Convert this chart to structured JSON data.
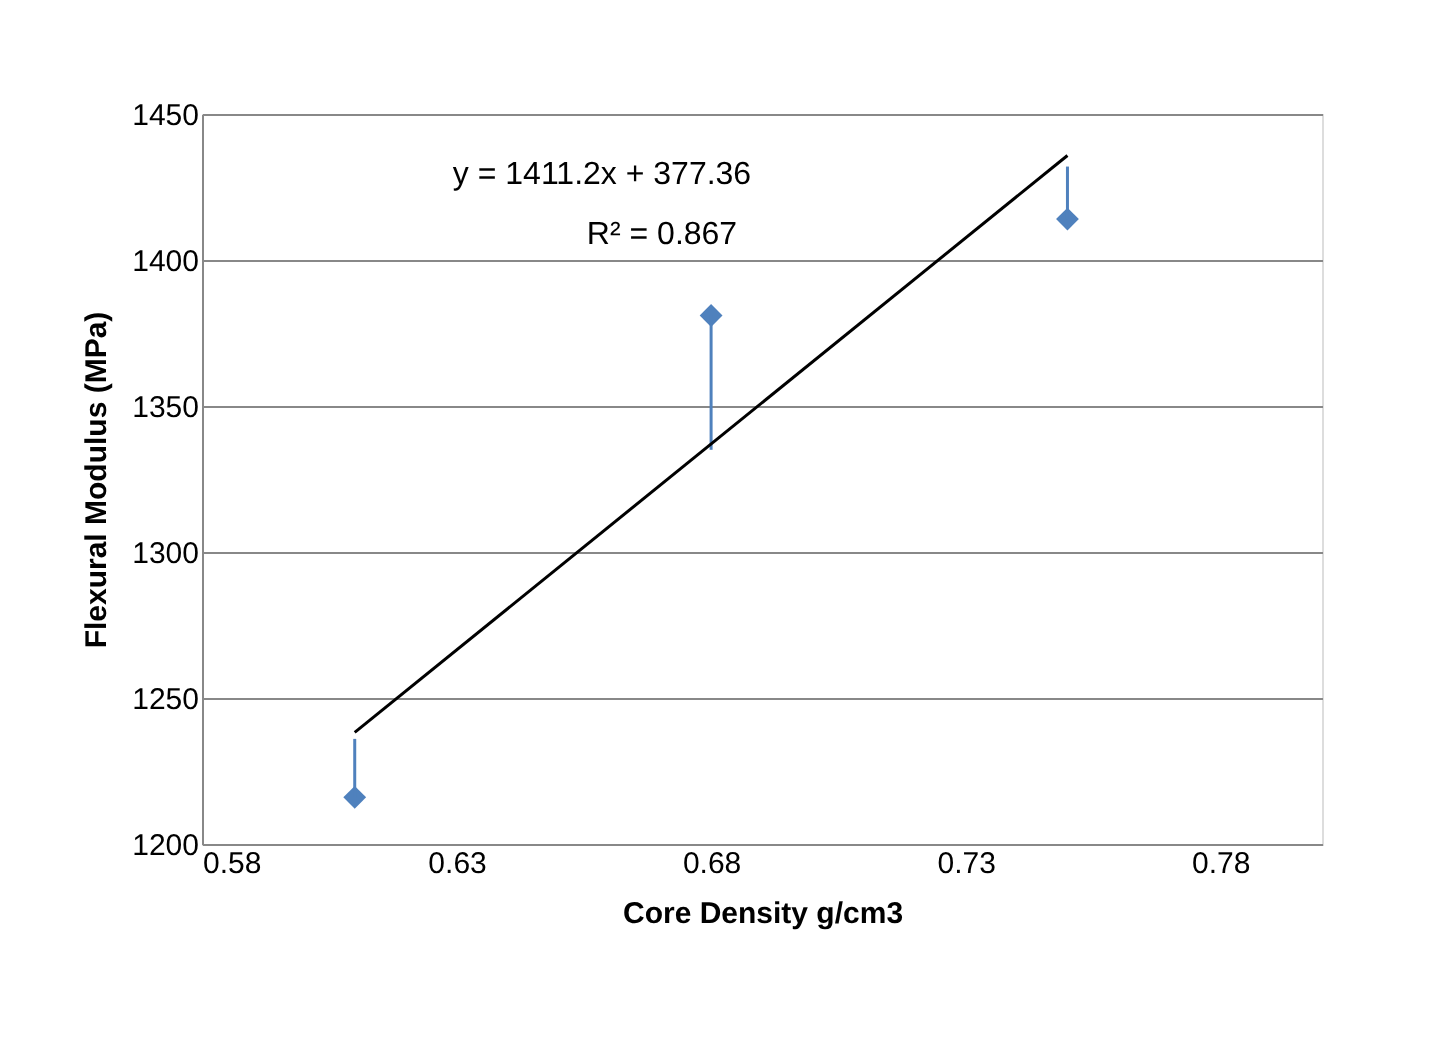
{
  "chart_data": {
    "type": "scatter",
    "xlabel": "Core Density g/cm3",
    "ylabel": "Flexural Modulus (MPa)",
    "xlim": [
      0.58,
      0.8
    ],
    "xticks": [
      0.58,
      0.63,
      0.68,
      0.73,
      0.78
    ],
    "ylim": [
      1200,
      1450
    ],
    "yticks": [
      1200,
      1250,
      1300,
      1350,
      1400,
      1450
    ],
    "grid": "y",
    "series": [
      {
        "color": "#4f81bd",
        "marker": "diamond",
        "x": [
          0.61,
          0.68,
          0.75
        ],
        "values": [
          1216,
          1381,
          1414
        ],
        "errors": [
          [
            1216,
            1236
          ],
          [
            1335,
            1381
          ],
          [
            1414,
            1432
          ]
        ]
      },
      {
        "type": "line",
        "marker": "none",
        "color": "#000000",
        "x": [
          0.61,
          0.75
        ],
        "values": [
          1238.2,
          1435.8
        ]
      }
    ],
    "annotations": [
      "y = 1411.2x + 377.36",
      "R² = 0.867"
    ]
  }
}
